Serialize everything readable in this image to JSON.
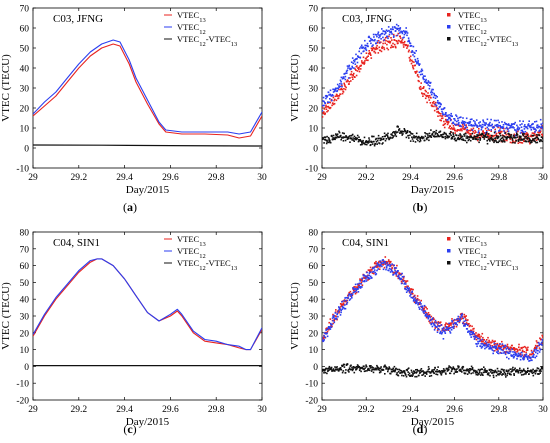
{
  "chart_data": [
    {
      "id": "a",
      "type": "line",
      "caption": "(a)",
      "site_label": "C03, JFNG",
      "xlabel": "Day/2015",
      "ylabel": "VTEC (TECU)",
      "xlim": [
        29,
        30
      ],
      "ylim": [
        -10,
        70
      ],
      "xticks": [
        29,
        29.2,
        29.4,
        29.6,
        29.8,
        30
      ],
      "xtick_labels": [
        "29",
        "29.2",
        "29.4",
        "29.6",
        "29.8",
        "30"
      ],
      "yticks": [
        -10,
        0,
        10,
        20,
        30,
        40,
        50,
        60,
        70
      ],
      "ytick_labels": [
        "-10",
        "0",
        "10",
        "20",
        "30",
        "40",
        "50",
        "60",
        "70"
      ],
      "legend": {
        "placement": "top-right",
        "entries": [
          {
            "base": "VTEC",
            "sub": "13",
            "color": "#e8231f"
          },
          {
            "base": "VTEC",
            "sub": "12",
            "color": "#2b3ef0"
          },
          {
            "text": "VTEC",
            "sub1": "12",
            "mid": "-VTEC",
            "sub2": "13",
            "color": "#111111"
          }
        ]
      },
      "series": [
        {
          "color": "#e8231f",
          "points": [
            [
              29,
              16
            ],
            [
              29.05,
              21
            ],
            [
              29.1,
              26
            ],
            [
              29.15,
              33
            ],
            [
              29.2,
              40
            ],
            [
              29.25,
              46
            ],
            [
              29.3,
              50
            ],
            [
              29.35,
              52
            ],
            [
              29.38,
              51
            ],
            [
              29.42,
              42
            ],
            [
              29.45,
              33
            ],
            [
              29.5,
              22
            ],
            [
              29.55,
              12
            ],
            [
              29.58,
              8
            ],
            [
              29.65,
              7
            ],
            [
              29.75,
              7
            ],
            [
              29.85,
              6.5
            ],
            [
              29.9,
              5
            ],
            [
              29.95,
              6
            ],
            [
              30,
              16
            ]
          ]
        },
        {
          "color": "#2b3ef0",
          "points": [
            [
              29,
              17
            ],
            [
              29.05,
              23
            ],
            [
              29.1,
              28
            ],
            [
              29.15,
              35
            ],
            [
              29.2,
              42
            ],
            [
              29.25,
              48
            ],
            [
              29.3,
              52
            ],
            [
              29.35,
              54
            ],
            [
              29.38,
              53
            ],
            [
              29.42,
              44
            ],
            [
              29.45,
              35
            ],
            [
              29.5,
              24
            ],
            [
              29.55,
              13
            ],
            [
              29.58,
              9
            ],
            [
              29.65,
              8
            ],
            [
              29.75,
              8
            ],
            [
              29.85,
              8
            ],
            [
              29.9,
              7
            ],
            [
              29.95,
              8
            ],
            [
              30,
              18
            ]
          ]
        },
        {
          "color": "#111111",
          "points": [
            [
              29,
              1.5
            ],
            [
              29.3,
              1.4
            ],
            [
              29.6,
              1.2
            ],
            [
              30,
              1
            ]
          ]
        }
      ]
    },
    {
      "id": "b",
      "type": "scatter",
      "caption": "(b)",
      "site_label": "C03, JFNG",
      "xlabel": "Day/2015",
      "ylabel": "VTEC (TECU)",
      "xlim": [
        29,
        30
      ],
      "ylim": [
        -10,
        70
      ],
      "xticks": [
        29,
        29.2,
        29.4,
        29.6,
        29.8,
        30
      ],
      "xtick_labels": [
        "29",
        "29.2",
        "29.4",
        "29.6",
        "29.8",
        "30"
      ],
      "yticks": [
        -10,
        0,
        10,
        20,
        30,
        40,
        50,
        60,
        70
      ],
      "ytick_labels": [
        "-10",
        "0",
        "10",
        "20",
        "30",
        "40",
        "50",
        "60",
        "70"
      ],
      "legend": {
        "placement": "top-right",
        "entries": [
          {
            "base": "VTEC",
            "sub": "13",
            "color": "#e8231f"
          },
          {
            "base": "VTEC",
            "sub": "12",
            "color": "#2b3ef0"
          },
          {
            "text": "VTEC",
            "sub1": "12",
            "mid": "-VTEC",
            "sub2": "13",
            "color": "#111111"
          }
        ]
      },
      "series": [
        {
          "color": "#e8231f",
          "points": [
            [
              29,
              18
            ],
            [
              29.05,
              23
            ],
            [
              29.1,
              30
            ],
            [
              29.15,
              38
            ],
            [
              29.2,
              45
            ],
            [
              29.25,
              50
            ],
            [
              29.3,
              53
            ],
            [
              29.35,
              54
            ],
            [
              29.38,
              52
            ],
            [
              29.42,
              40
            ],
            [
              29.45,
              30
            ],
            [
              29.5,
              22
            ],
            [
              29.55,
              13
            ],
            [
              29.6,
              10
            ],
            [
              29.7,
              7
            ],
            [
              29.8,
              7
            ],
            [
              29.85,
              6
            ],
            [
              29.9,
              5
            ],
            [
              29.95,
              6
            ],
            [
              30,
              8
            ]
          ]
        },
        {
          "color": "#2b3ef0",
          "points": [
            [
              29,
              22
            ],
            [
              29.05,
              27
            ],
            [
              29.1,
              35
            ],
            [
              29.15,
              44
            ],
            [
              29.2,
              52
            ],
            [
              29.25,
              56
            ],
            [
              29.3,
              58
            ],
            [
              29.35,
              59
            ],
            [
              29.38,
              57
            ],
            [
              29.42,
              47
            ],
            [
              29.45,
              37
            ],
            [
              29.5,
              28
            ],
            [
              29.55,
              18
            ],
            [
              29.6,
              14
            ],
            [
              29.7,
              11
            ],
            [
              29.8,
              11
            ],
            [
              29.85,
              10
            ],
            [
              29.9,
              10
            ],
            [
              29.95,
              11
            ],
            [
              30,
              12
            ]
          ]
        },
        {
          "color": "#111111",
          "points": [
            [
              29,
              4
            ],
            [
              29.1,
              6
            ],
            [
              29.2,
              3
            ],
            [
              29.3,
              5
            ],
            [
              29.35,
              9
            ],
            [
              29.4,
              6
            ],
            [
              29.45,
              4
            ],
            [
              29.5,
              7
            ],
            [
              29.6,
              5
            ],
            [
              29.7,
              5
            ],
            [
              29.8,
              5
            ],
            [
              29.9,
              5
            ],
            [
              30,
              4
            ]
          ]
        }
      ]
    },
    {
      "id": "c",
      "type": "line",
      "caption": "(c)",
      "site_label": "C04, SIN1",
      "xlabel": "Day/2015",
      "ylabel": "VTEC (TECU)",
      "xlim": [
        29,
        30
      ],
      "ylim": [
        -20,
        80
      ],
      "xticks": [
        29,
        29.2,
        29.4,
        29.6,
        29.8,
        30
      ],
      "xtick_labels": [
        "29",
        "29.2",
        "29.4",
        "29.6",
        "29.8",
        "30"
      ],
      "yticks": [
        -20,
        -10,
        0,
        10,
        20,
        30,
        40,
        50,
        60,
        70,
        80
      ],
      "ytick_labels": [
        "-20",
        "-10",
        "0",
        "10",
        "20",
        "30",
        "40",
        "50",
        "60",
        "70",
        "80"
      ],
      "legend": {
        "placement": "top-right",
        "entries": [
          {
            "base": "VTEC",
            "sub": "13",
            "color": "#e8231f"
          },
          {
            "base": "VTEC",
            "sub": "12",
            "color": "#2b3ef0"
          },
          {
            "text": "VTEC",
            "sub1": "12",
            "mid": "-VTEC",
            "sub2": "13",
            "color": "#111111"
          }
        ]
      },
      "series": [
        {
          "color": "#e8231f",
          "points": [
            [
              29,
              18
            ],
            [
              29.05,
              30
            ],
            [
              29.1,
              40
            ],
            [
              29.15,
              48
            ],
            [
              29.2,
              56
            ],
            [
              29.25,
              62
            ],
            [
              29.28,
              64
            ],
            [
              29.3,
              64
            ],
            [
              29.35,
              60
            ],
            [
              29.4,
              52
            ],
            [
              29.45,
              42
            ],
            [
              29.5,
              32
            ],
            [
              29.55,
              27
            ],
            [
              29.6,
              30
            ],
            [
              29.63,
              33
            ],
            [
              29.65,
              30
            ],
            [
              29.7,
              20
            ],
            [
              29.75,
              15
            ],
            [
              29.8,
              14
            ],
            [
              29.85,
              13
            ],
            [
              29.9,
              11
            ],
            [
              29.93,
              10
            ],
            [
              29.95,
              10
            ],
            [
              30,
              22
            ]
          ]
        },
        {
          "color": "#2b3ef0",
          "points": [
            [
              29,
              19
            ],
            [
              29.05,
              31
            ],
            [
              29.1,
              41
            ],
            [
              29.15,
              49
            ],
            [
              29.2,
              57
            ],
            [
              29.25,
              63
            ],
            [
              29.28,
              64
            ],
            [
              29.3,
              64
            ],
            [
              29.35,
              60
            ],
            [
              29.4,
              52
            ],
            [
              29.45,
              42
            ],
            [
              29.5,
              32
            ],
            [
              29.55,
              27
            ],
            [
              29.6,
              31
            ],
            [
              29.63,
              34
            ],
            [
              29.65,
              31
            ],
            [
              29.7,
              21
            ],
            [
              29.75,
              16
            ],
            [
              29.8,
              15
            ],
            [
              29.85,
              13
            ],
            [
              29.9,
              12
            ],
            [
              29.93,
              10
            ],
            [
              29.95,
              10
            ],
            [
              30,
              23
            ]
          ]
        },
        {
          "color": "#111111",
          "points": [
            [
              29,
              0.5
            ],
            [
              29.5,
              0.5
            ],
            [
              30,
              0.5
            ]
          ]
        }
      ]
    },
    {
      "id": "d",
      "type": "scatter",
      "caption": "(d)",
      "site_label": "C04, SIN1",
      "xlabel": "Day/2015",
      "ylabel": "VTEC (TECU)",
      "xlim": [
        29,
        30
      ],
      "ylim": [
        -20,
        80
      ],
      "xticks": [
        29,
        29.2,
        29.4,
        29.6,
        29.8,
        30
      ],
      "xtick_labels": [
        "29",
        "29.2",
        "29.4",
        "29.6",
        "29.8",
        "30"
      ],
      "yticks": [
        -20,
        -10,
        0,
        10,
        20,
        30,
        40,
        50,
        60,
        70,
        80
      ],
      "ytick_labels": [
        "-20",
        "-10",
        "0",
        "10",
        "20",
        "30",
        "40",
        "50",
        "60",
        "70",
        "80"
      ],
      "legend": {
        "placement": "top-right",
        "entries": [
          {
            "base": "VTEC",
            "sub": "13",
            "color": "#e8231f"
          },
          {
            "base": "VTEC",
            "sub": "12",
            "color": "#2b3ef0"
          },
          {
            "text": "VTEC",
            "sub1": "12",
            "mid": "-VTEC",
            "sub2": "13",
            "color": "#111111"
          }
        ]
      },
      "series": [
        {
          "color": "#e8231f",
          "points": [
            [
              29,
              16
            ],
            [
              29.05,
              28
            ],
            [
              29.1,
              38
            ],
            [
              29.15,
              46
            ],
            [
              29.2,
              54
            ],
            [
              29.25,
              60
            ],
            [
              29.28,
              62
            ],
            [
              29.3,
              61
            ],
            [
              29.35,
              55
            ],
            [
              29.4,
              45
            ],
            [
              29.45,
              36
            ],
            [
              29.5,
              27
            ],
            [
              29.55,
              22
            ],
            [
              29.6,
              26
            ],
            [
              29.63,
              30
            ],
            [
              29.65,
              27
            ],
            [
              29.7,
              18
            ],
            [
              29.75,
              14
            ],
            [
              29.8,
              12
            ],
            [
              29.85,
              11
            ],
            [
              29.9,
              9
            ],
            [
              29.95,
              8
            ],
            [
              30,
              17
            ]
          ]
        },
        {
          "color": "#2b3ef0",
          "points": [
            [
              29,
              15
            ],
            [
              29.05,
              27
            ],
            [
              29.1,
              37
            ],
            [
              29.15,
              45
            ],
            [
              29.2,
              53
            ],
            [
              29.25,
              59
            ],
            [
              29.28,
              61
            ],
            [
              29.3,
              60
            ],
            [
              29.35,
              54
            ],
            [
              29.4,
              44
            ],
            [
              29.45,
              35
            ],
            [
              29.5,
              26
            ],
            [
              29.55,
              20
            ],
            [
              29.6,
              25
            ],
            [
              29.63,
              29
            ],
            [
              29.65,
              25
            ],
            [
              29.7,
              15
            ],
            [
              29.75,
              12
            ],
            [
              29.8,
              10
            ],
            [
              29.85,
              8
            ],
            [
              29.9,
              6
            ],
            [
              29.95,
              5
            ],
            [
              30,
              15
            ]
          ]
        },
        {
          "color": "#111111",
          "points": [
            [
              29,
              -2
            ],
            [
              29.1,
              -1
            ],
            [
              29.2,
              -1
            ],
            [
              29.3,
              -2
            ],
            [
              29.4,
              -4
            ],
            [
              29.5,
              -3
            ],
            [
              29.6,
              -2
            ],
            [
              29.7,
              -3
            ],
            [
              29.8,
              -4
            ],
            [
              29.9,
              -3
            ],
            [
              30,
              -3
            ]
          ]
        }
      ]
    }
  ]
}
